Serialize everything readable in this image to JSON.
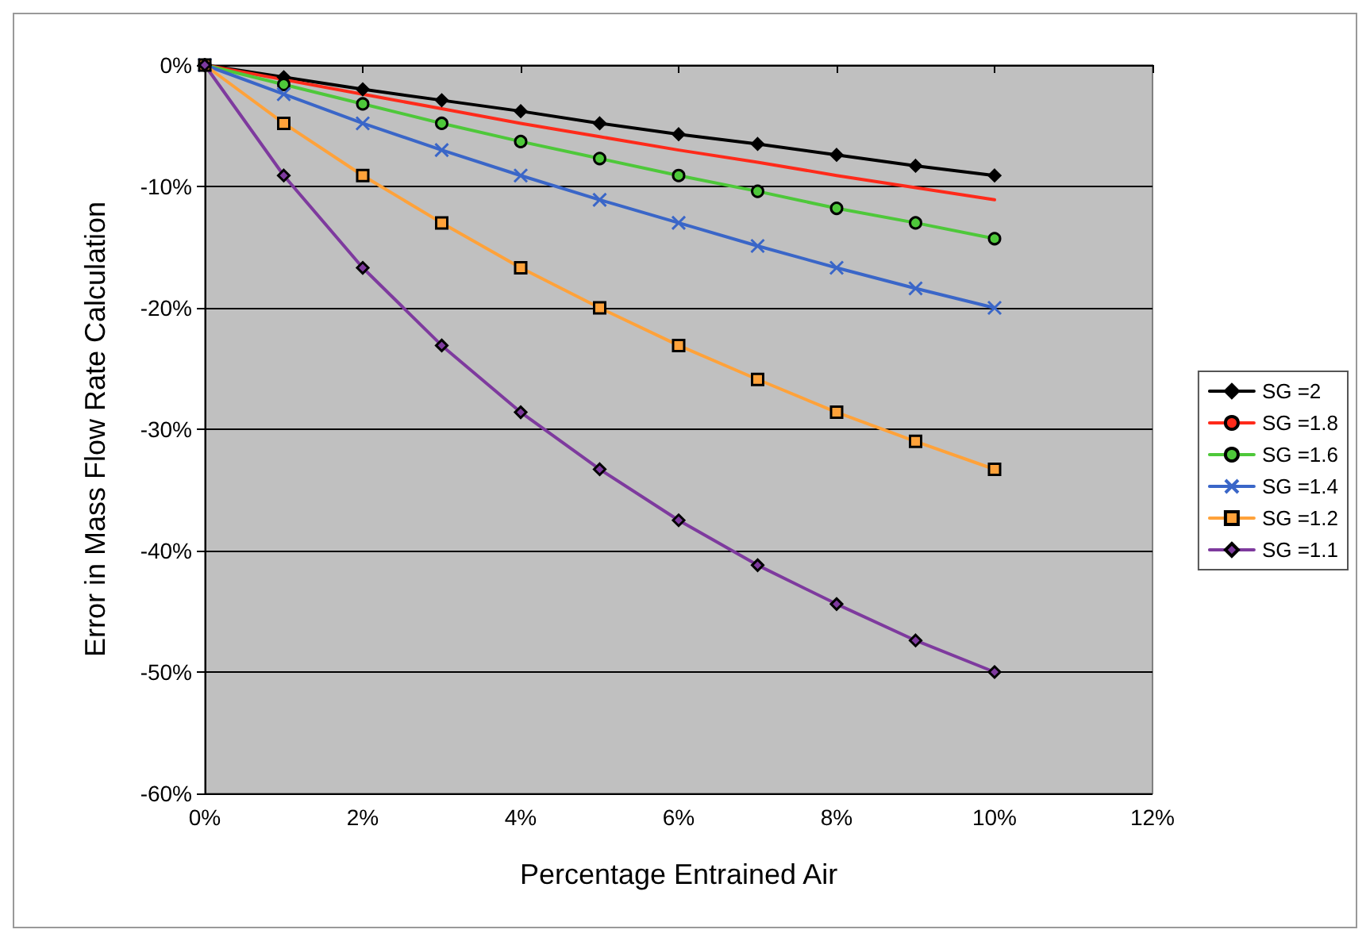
{
  "chart_data": {
    "type": "line",
    "xlabel": "Percentage Entrained Air",
    "ylabel": "Error in Mass Flow Rate Calculation",
    "x": [
      0,
      1,
      2,
      3,
      4,
      5,
      6,
      7,
      8,
      9,
      10
    ],
    "xlim": [
      0,
      12
    ],
    "xticks": [
      {
        "value": 0,
        "label": "0%"
      },
      {
        "value": 2,
        "label": "2%"
      },
      {
        "value": 4,
        "label": "4%"
      },
      {
        "value": 6,
        "label": "6%"
      },
      {
        "value": 8,
        "label": "8%"
      },
      {
        "value": 10,
        "label": "10%"
      },
      {
        "value": 12,
        "label": "12%"
      }
    ],
    "ylim": [
      -60,
      0
    ],
    "yticks": [
      {
        "value": -60,
        "label": "-60%"
      },
      {
        "value": -50,
        "label": "-50%"
      },
      {
        "value": -40,
        "label": "-40%"
      },
      {
        "value": -30,
        "label": "-30%"
      },
      {
        "value": -20,
        "label": "-20%"
      },
      {
        "value": -10,
        "label": "-10%"
      },
      {
        "value": 0,
        "label": "0%"
      }
    ],
    "grid": "y",
    "legend": "right",
    "line_style": "solid",
    "series": [
      {
        "name": "SG =2",
        "color": "#000000",
        "marker": "diamond",
        "values": [
          0,
          -1.0,
          -2.0,
          -2.9,
          -3.8,
          -4.8,
          -5.7,
          -6.5,
          -7.4,
          -8.3,
          -9.1
        ]
      },
      {
        "name": "SG =1.8",
        "color": "#ff2a1a",
        "marker": "none",
        "values": [
          0,
          -1.2,
          -2.4,
          -3.6,
          -4.8,
          -5.9,
          -7.0,
          -8.0,
          -9.1,
          -10.1,
          -11.1
        ]
      },
      {
        "name": "SG =1.6",
        "color": "#4ec83a",
        "marker": "circle",
        "values": [
          0,
          -1.6,
          -3.2,
          -4.8,
          -6.3,
          -7.7,
          -9.1,
          -10.4,
          -11.8,
          -13.0,
          -14.3
        ]
      },
      {
        "name": "SG =1.4",
        "color": "#3a66c8",
        "marker": "cross",
        "values": [
          0,
          -2.4,
          -4.8,
          -7.0,
          -9.1,
          -11.1,
          -13.0,
          -14.9,
          -16.7,
          -18.4,
          -20.0
        ]
      },
      {
        "name": "SG =1.2",
        "color": "#ffa23a",
        "marker": "square",
        "values": [
          0,
          -4.8,
          -9.1,
          -13.0,
          -16.7,
          -20.0,
          -23.1,
          -25.9,
          -28.6,
          -31.0,
          -33.3
        ]
      },
      {
        "name": "SG =1.1",
        "color": "#7e3a9e",
        "marker": "diamond",
        "values": [
          0,
          -9.1,
          -16.7,
          -23.1,
          -28.6,
          -33.3,
          -37.5,
          -41.2,
          -44.4,
          -47.4,
          -50.0
        ]
      }
    ]
  }
}
